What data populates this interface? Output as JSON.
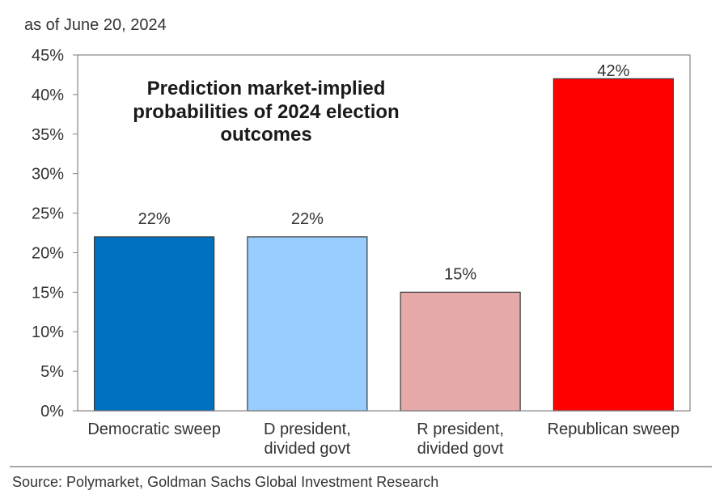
{
  "note": "as of June 20, 2024",
  "source": "Source: Polymarket, Goldman Sachs Global Investment Research",
  "chart_data": {
    "type": "bar",
    "title": "Prediction market-implied probabilities of 2024 election outcomes",
    "categories": [
      "Democratic sweep",
      "D president, divided govt",
      "R president, divided govt",
      "Republican sweep"
    ],
    "values": [
      22,
      22,
      15,
      42
    ],
    "data_labels": [
      "22%",
      "22%",
      "15%",
      "42%"
    ],
    "colors": [
      "#0070C0",
      "#99CCFF",
      "#E6A9A9",
      "#FF0000"
    ],
    "ylim": [
      0,
      45
    ],
    "y_ticks": [
      0,
      5,
      10,
      15,
      20,
      25,
      30,
      35,
      40,
      45
    ],
    "y_tick_labels": [
      "0%",
      "5%",
      "10%",
      "15%",
      "20%",
      "25%",
      "30%",
      "35%",
      "40%",
      "45%"
    ],
    "grid": false
  }
}
